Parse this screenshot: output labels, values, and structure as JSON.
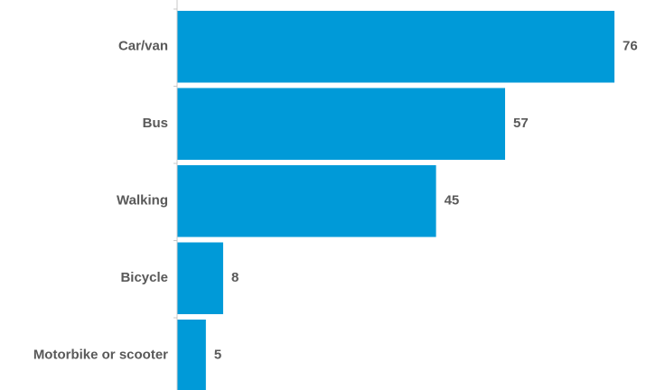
{
  "chart_data": {
    "type": "bar",
    "orientation": "horizontal",
    "categories": [
      "Car/van",
      "Bus",
      "Walking",
      "Bicycle",
      "Motorbike or scooter"
    ],
    "values": [
      76,
      57,
      45,
      8,
      5
    ],
    "data_labels": [
      "76",
      "57",
      "45",
      "8",
      "5"
    ],
    "xlim": [
      0,
      80
    ],
    "grid": false,
    "legend": "none",
    "colors": {
      "bar": "#009ad8",
      "label_text": "#595959",
      "axis": "#c8c8c8"
    }
  }
}
